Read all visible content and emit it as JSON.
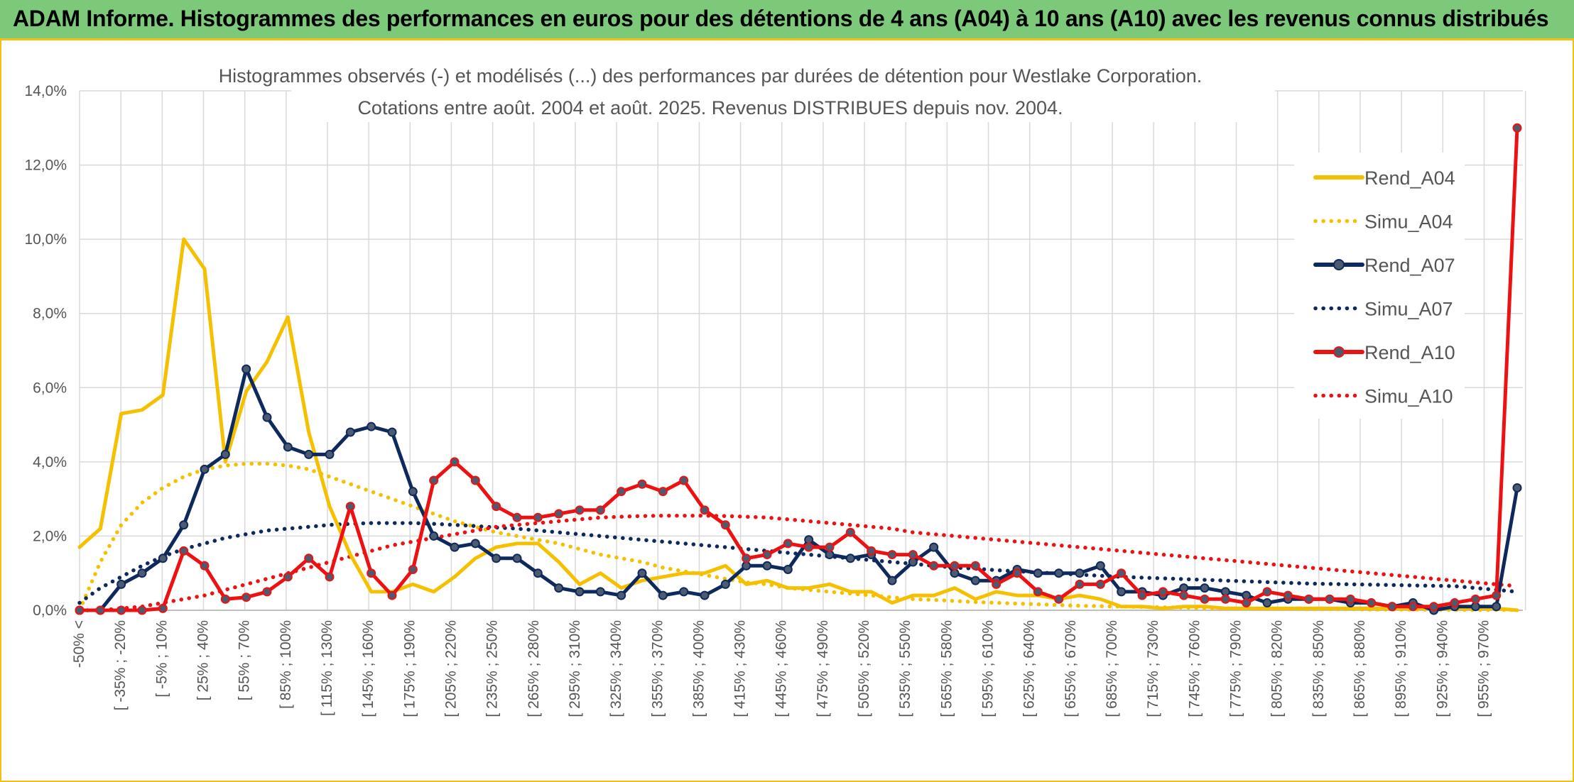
{
  "banner": {
    "title": "ADAM Informe. Histogrammes des performances en euros pour des détentions de 4 ans (A04) à 10 ans (A10) avec les revenus connus distribués"
  },
  "colors": {
    "banner_bg": "#7cc97a",
    "banner_border": "#f2c012",
    "A04": "#f5c000",
    "A07": "#0e2a5c",
    "A10": "#ee1111"
  },
  "chart_data": {
    "type": "line",
    "title": "Histogrammes observés (-) et modélisés (...) des performances par durées de détention pour Westlake Corporation.",
    "subtitle": "Cotations entre août. 2004 et août. 2025. Revenus DISTRIBUES depuis nov. 2004.",
    "ylim": [
      0,
      14
    ],
    "yticks": [
      "0,0%",
      "2,0%",
      "4,0%",
      "6,0%",
      "8,0%",
      "10,0%",
      "12,0%",
      "14,0%"
    ],
    "grid": true,
    "legend_position": "right",
    "x_tick_labels": [
      "-50% <",
      "[ -35% ; -20%",
      "[ -5% ; 10%",
      "[ 25% ; 40%",
      "[ 55% ; 70%",
      "[ 85% ; 100%",
      "[ 115% ; 130%",
      "[ 145% ; 160%",
      "[ 175% ; 190%",
      "[ 205% ; 220%",
      "[ 235% ; 250%",
      "[ 265% ; 280%",
      "[ 295% ; 310%",
      "[ 325% ; 340%",
      "[ 355% ; 370%",
      "[ 385% ; 400%",
      "[ 415% ; 430%",
      "[ 445% ; 460%",
      "[ 475% ; 490%",
      "[ 505% ; 520%",
      "[ 535% ; 550%",
      "[ 565% ; 580%",
      "[ 595% ; 610%",
      "[ 625% ; 640%",
      "[ 655% ; 670%",
      "[ 685% ; 700%",
      "[ 715% ; 730%",
      "[ 745% ; 760%",
      "[ 775% ; 790%",
      "[ 805% ; 820%",
      "[ 835% ; 850%",
      "[ 865% ; 880%",
      "[ 895% ; 910%",
      "[ 925% ; 940%",
      "[ 955% ; 970%"
    ],
    "series": [
      {
        "name": "Rend_A04",
        "style": "solid",
        "markers": false,
        "values": [
          1.7,
          2.2,
          5.3,
          5.4,
          5.8,
          10.0,
          9.2,
          4.0,
          5.9,
          6.7,
          7.9,
          4.8,
          2.8,
          1.5,
          0.5,
          0.5,
          0.7,
          0.5,
          0.9,
          1.4,
          1.7,
          1.8,
          1.8,
          1.3,
          0.7,
          1.0,
          0.6,
          0.8,
          0.9,
          1.0,
          1.0,
          1.2,
          0.7,
          0.8,
          0.6,
          0.6,
          0.7,
          0.5,
          0.5,
          0.2,
          0.4,
          0.4,
          0.6,
          0.3,
          0.5,
          0.4,
          0.4,
          0.3,
          0.4,
          0.3,
          0.1,
          0.1,
          0.05,
          0.1,
          0.1,
          0.05,
          0.05,
          0.05,
          0.05,
          0.05,
          0.05,
          0.05,
          0.05,
          0.05,
          0.05,
          0.05,
          0.05,
          0.05,
          0.05,
          0.0
        ]
      },
      {
        "name": "Simu_A04",
        "style": "dotted",
        "markers": false,
        "values": [
          0.0,
          1.3,
          2.3,
          2.9,
          3.3,
          3.6,
          3.8,
          3.9,
          3.95,
          3.95,
          3.9,
          3.8,
          3.6,
          3.4,
          3.2,
          3.0,
          2.8,
          2.6,
          2.4,
          2.25,
          2.1,
          2.0,
          1.9,
          1.8,
          1.65,
          1.5,
          1.4,
          1.3,
          1.15,
          1.05,
          0.95,
          0.85,
          0.75,
          0.7,
          0.6,
          0.55,
          0.5,
          0.45,
          0.4,
          0.35,
          0.3,
          0.28,
          0.25,
          0.22,
          0.2,
          0.18,
          0.16,
          0.14,
          0.12,
          0.11,
          0.1,
          0.09,
          0.08,
          0.07,
          0.06,
          0.05,
          0.05,
          0.04,
          0.04,
          0.03,
          0.03,
          0.03,
          0.02,
          0.02,
          0.02,
          0.02,
          0.01,
          0.01,
          0.01,
          0.01
        ]
      },
      {
        "name": "Rend_A07",
        "style": "solid",
        "markers": true,
        "values": [
          0.0,
          0.0,
          0.7,
          1.0,
          1.4,
          2.3,
          3.8,
          4.2,
          6.5,
          5.2,
          4.4,
          4.2,
          4.2,
          4.8,
          4.95,
          4.8,
          3.2,
          2.0,
          1.7,
          1.8,
          1.4,
          1.4,
          1.0,
          0.6,
          0.5,
          0.5,
          0.4,
          1.0,
          0.4,
          0.5,
          0.4,
          0.7,
          1.2,
          1.2,
          1.1,
          1.9,
          1.5,
          1.4,
          1.5,
          0.8,
          1.3,
          1.7,
          1.0,
          0.8,
          0.8,
          1.1,
          1.0,
          1.0,
          1.0,
          1.2,
          0.5,
          0.5,
          0.4,
          0.6,
          0.6,
          0.5,
          0.4,
          0.2,
          0.3,
          0.3,
          0.3,
          0.2,
          0.2,
          0.1,
          0.2,
          0.0,
          0.1,
          0.1,
          0.1,
          3.3
        ]
      },
      {
        "name": "Simu_A07",
        "style": "dotted",
        "markers": false,
        "values": [
          0.2,
          0.6,
          0.9,
          1.2,
          1.45,
          1.65,
          1.8,
          1.95,
          2.05,
          2.15,
          2.2,
          2.25,
          2.3,
          2.33,
          2.35,
          2.35,
          2.35,
          2.33,
          2.3,
          2.27,
          2.23,
          2.2,
          2.15,
          2.1,
          2.05,
          2.0,
          1.95,
          1.9,
          1.85,
          1.8,
          1.75,
          1.7,
          1.65,
          1.6,
          1.55,
          1.5,
          1.45,
          1.4,
          1.35,
          1.3,
          1.25,
          1.2,
          1.15,
          1.12,
          1.08,
          1.05,
          1.02,
          0.99,
          0.96,
          0.93,
          0.9,
          0.88,
          0.86,
          0.84,
          0.82,
          0.8,
          0.78,
          0.76,
          0.74,
          0.72,
          0.71,
          0.7,
          0.69,
          0.68,
          0.67,
          0.66,
          0.65,
          0.6,
          0.55,
          0.5
        ]
      },
      {
        "name": "Rend_A10",
        "style": "solid",
        "markers": true,
        "values": [
          0.0,
          0.0,
          0.0,
          0.0,
          0.05,
          1.6,
          1.2,
          0.3,
          0.35,
          0.5,
          0.9,
          1.4,
          0.9,
          2.8,
          1.0,
          0.4,
          1.1,
          3.5,
          4.0,
          3.5,
          2.8,
          2.5,
          2.5,
          2.6,
          2.7,
          2.7,
          3.2,
          3.4,
          3.2,
          3.5,
          2.7,
          2.3,
          1.4,
          1.5,
          1.8,
          1.7,
          1.7,
          2.1,
          1.6,
          1.5,
          1.5,
          1.2,
          1.2,
          1.2,
          0.7,
          1.0,
          0.5,
          0.3,
          0.7,
          0.7,
          1.0,
          0.4,
          0.5,
          0.4,
          0.3,
          0.3,
          0.2,
          0.5,
          0.4,
          0.3,
          0.3,
          0.3,
          0.2,
          0.1,
          0.1,
          0.1,
          0.2,
          0.3,
          0.4,
          13.0
        ]
      },
      {
        "name": "Simu_A10",
        "style": "dotted",
        "markers": false,
        "values": [
          0.0,
          0.0,
          0.05,
          0.1,
          0.2,
          0.3,
          0.4,
          0.55,
          0.7,
          0.85,
          1.0,
          1.15,
          1.3,
          1.45,
          1.6,
          1.75,
          1.85,
          1.95,
          2.05,
          2.15,
          2.25,
          2.3,
          2.35,
          2.4,
          2.45,
          2.5,
          2.52,
          2.54,
          2.55,
          2.55,
          2.55,
          2.54,
          2.52,
          2.5,
          2.45,
          2.4,
          2.35,
          2.3,
          2.25,
          2.2,
          2.1,
          2.05,
          2.0,
          1.95,
          1.9,
          1.85,
          1.8,
          1.75,
          1.7,
          1.65,
          1.6,
          1.55,
          1.5,
          1.45,
          1.4,
          1.35,
          1.3,
          1.25,
          1.2,
          1.15,
          1.1,
          1.05,
          1.0,
          0.95,
          0.9,
          0.85,
          0.8,
          0.75,
          0.7,
          0.65
        ]
      }
    ]
  }
}
